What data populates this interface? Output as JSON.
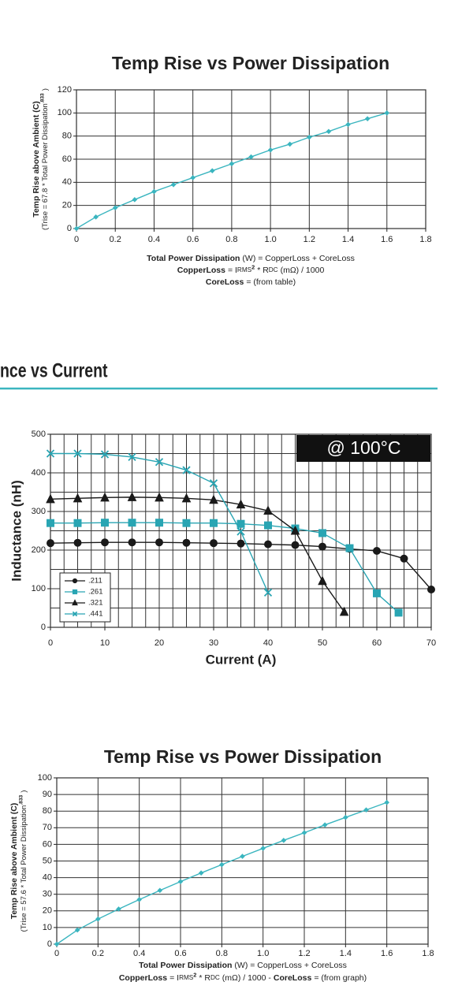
{
  "section_heading": "nce vs Current",
  "chart_data": [
    {
      "type": "line",
      "title": "Temp Rise vs Power Dissipation",
      "ylabel": "Temp Rise above Ambient (C)",
      "ylabel_note": [
        {
          "text": "(Trise = 67.8 * Total Power Dissipation",
          "style": "normal"
        },
        {
          "text": ".833",
          "style": "sup"
        },
        {
          "text": ")",
          "style": "normal"
        }
      ],
      "x": [
        0,
        0.1,
        0.2,
        0.3,
        0.4,
        0.5,
        0.6,
        0.7,
        0.8,
        0.9,
        1.0,
        1.1,
        1.2,
        1.3,
        1.4,
        1.5,
        1.6
      ],
      "series": [
        {
          "color": "#3ab5bf",
          "marker": "diamond",
          "values": [
            0,
            10,
            18,
            25,
            32,
            38,
            44,
            50,
            56,
            62,
            68,
            73,
            79,
            84,
            90,
            95,
            100
          ]
        }
      ],
      "xlim": [
        0,
        1.8
      ],
      "xticks": [
        0,
        0.2,
        0.4,
        0.6,
        0.8,
        {
          "value": 1,
          "label": "1.0"
        },
        1.2,
        1.4,
        1.6,
        1.8
      ],
      "ylim": [
        0,
        120
      ],
      "yticks": [
        0,
        20,
        40,
        60,
        80,
        100,
        120
      ],
      "grid": true,
      "footer": [
        [
          {
            "text": "Total Power Dissipation",
            "style": "bold"
          },
          {
            "text": "(W) = CopperLoss + CoreLoss",
            "style": "normal"
          }
        ],
        [
          {
            "text": "CopperLoss",
            "style": "bold"
          },
          {
            "text": "= I",
            "style": "normal"
          },
          {
            "text": "RMS",
            "style": "small"
          },
          {
            "text": "2",
            "style": "sup"
          },
          {
            "text": "* R",
            "style": "normal"
          },
          {
            "text": "DC",
            "style": "small"
          },
          {
            "text": "(mΩ) / 1000",
            "style": "normal"
          }
        ],
        [
          {
            "text": "CoreLoss",
            "style": "bold"
          },
          {
            "text": "= (from table)",
            "style": "normal"
          }
        ]
      ]
    },
    {
      "type": "line",
      "xlabel": "Current (A)",
      "ylabel": "Inductance (nH)",
      "annotation": "@ 100°C",
      "series": [
        {
          "name": ".211",
          "color": "#1a1a1a",
          "marker": "circle",
          "x": [
            0,
            5,
            10,
            15,
            20,
            25,
            30,
            35,
            40,
            45,
            50,
            55,
            60,
            65,
            70
          ],
          "values": [
            218,
            219,
            220,
            220,
            220,
            219,
            218,
            217,
            215,
            213,
            209,
            203,
            198,
            178,
            98
          ]
        },
        {
          "name": ".261",
          "color": "#29a5b3",
          "marker": "square",
          "x": [
            0,
            5,
            10,
            15,
            20,
            25,
            30,
            35,
            40,
            45,
            50,
            55,
            60,
            64
          ],
          "values": [
            270,
            270,
            271,
            271,
            271,
            270,
            270,
            268,
            264,
            256,
            244,
            205,
            88,
            38
          ]
        },
        {
          "name": ".321",
          "color": "#1a1a1a",
          "marker": "triangle",
          "x": [
            0,
            5,
            10,
            15,
            20,
            25,
            30,
            35,
            40,
            45,
            50,
            54
          ],
          "values": [
            332,
            334,
            336,
            337,
            336,
            334,
            330,
            318,
            302,
            250,
            120,
            40
          ]
        },
        {
          "name": ".441",
          "color": "#29a5b3",
          "marker": "x",
          "x": [
            0,
            5,
            10,
            15,
            20,
            25,
            30,
            35,
            40
          ],
          "values": [
            450,
            450,
            448,
            441,
            428,
            407,
            373,
            248,
            90
          ]
        }
      ],
      "xlim": [
        0,
        70
      ],
      "xticks": [
        0,
        10,
        20,
        30,
        40,
        50,
        60,
        70
      ],
      "xgrid": [
        0,
        2.5,
        5,
        7.5,
        10,
        12.5,
        15,
        17.5,
        20,
        22.5,
        25,
        27.5,
        30,
        32.5,
        35,
        37.5,
        40,
        42.5,
        45,
        47.5,
        50,
        52.5,
        55,
        57.5,
        60,
        62.5,
        65,
        67.5,
        70
      ],
      "ylim": [
        0,
        500
      ],
      "yticks": [
        0,
        100,
        200,
        300,
        400,
        500
      ],
      "ygrid": [
        0,
        50,
        100,
        150,
        200,
        250,
        300,
        350,
        400,
        450,
        500
      ],
      "grid": true,
      "legend": "lower-left"
    },
    {
      "type": "line",
      "title": "Temp Rise vs Power Dissipation",
      "ylabel": "Temp Rise above Ambient (C)",
      "ylabel_note": [
        {
          "text": "(Trise = 57.6 * Total Power Dissipation",
          "style": "normal"
        },
        {
          "text": ".833",
          "style": "sup"
        },
        {
          "text": ")",
          "style": "normal"
        }
      ],
      "x": [
        0,
        0.1,
        0.2,
        0.3,
        0.4,
        0.5,
        0.6,
        0.7,
        0.8,
        0.9,
        1.0,
        1.1,
        1.2,
        1.3,
        1.4,
        1.5,
        1.6
      ],
      "series": [
        {
          "color": "#3ab5bf",
          "marker": "diamond",
          "values": [
            0,
            8.5,
            15.1,
            21.1,
            26.8,
            32.3,
            37.6,
            42.8,
            47.8,
            52.8,
            57.6,
            62.4,
            67.0,
            71.7,
            76.2,
            80.7,
            85.2
          ]
        }
      ],
      "xlim": [
        0,
        1.8
      ],
      "xticks": [
        0,
        0.2,
        0.4,
        0.6,
        0.8,
        {
          "value": 1,
          "label": "1.0"
        },
        1.2,
        1.4,
        1.6,
        1.8
      ],
      "ylim": [
        0,
        100
      ],
      "yticks": [
        0,
        10,
        20,
        30,
        40,
        50,
        60,
        70,
        80,
        90,
        100
      ],
      "grid": true,
      "footer": [
        [
          {
            "text": "Total Power Dissipation",
            "style": "bold"
          },
          {
            "text": "(W) = CopperLoss + CoreLoss",
            "style": "normal"
          }
        ],
        [
          {
            "text": "CopperLoss",
            "style": "bold"
          },
          {
            "text": "= I",
            "style": "normal"
          },
          {
            "text": "RMS",
            "style": "small"
          },
          {
            "text": "2",
            "style": "sup"
          },
          {
            "text": "* R",
            "style": "normal"
          },
          {
            "text": "DC",
            "style": "small"
          },
          {
            "text": "(mΩ) / 1000  -",
            "style": "normal"
          },
          {
            "text": "CoreLoss",
            "style": "bold"
          },
          {
            "text": "= (from graph)",
            "style": "normal"
          }
        ]
      ]
    }
  ]
}
